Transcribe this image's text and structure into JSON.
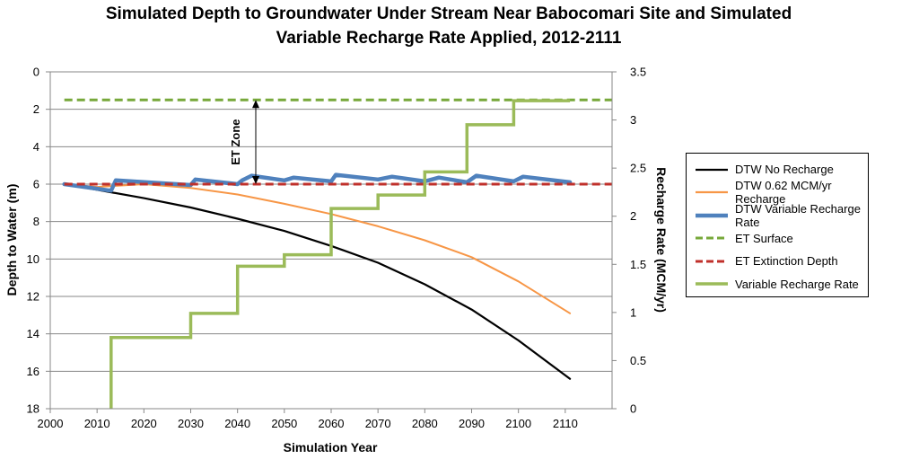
{
  "title_line1": "Simulated Depth to Groundwater Under Stream Near Babocomari Site and Simulated",
  "title_line2": "Variable Recharge Rate Applied, 2012-2111",
  "chart_data": {
    "type": "line",
    "title": "Simulated Depth to Groundwater Under Stream Near Babocomari Site and Simulated Variable Recharge Rate Applied, 2012-2111",
    "xlabel": "Simulation Year",
    "ylabel": "Depth to Water (m)",
    "y2label": "Recharge Rate (MCM/yr)",
    "xlim": [
      2000,
      2120
    ],
    "xticks": [
      2000,
      2010,
      2020,
      2030,
      2040,
      2050,
      2060,
      2070,
      2080,
      2090,
      2100,
      2110
    ],
    "ylim": [
      0,
      18
    ],
    "yticks": [
      0,
      2,
      4,
      6,
      8,
      10,
      12,
      14,
      16,
      18
    ],
    "y_inverted": true,
    "y2lim": [
      0,
      3.5
    ],
    "y2ticks": [
      "0",
      "0.5",
      "1",
      "1.5",
      "2",
      "2.5",
      "3",
      "3.5"
    ],
    "grid": true,
    "legend_position": "right",
    "annotation": "ET Zone",
    "series": [
      {
        "name": "DTW No Recharge",
        "axis": "left",
        "color": "#000000",
        "style": "solid",
        "x": [
          2003,
          2010,
          2020,
          2030,
          2040,
          2050,
          2060,
          2070,
          2080,
          2090,
          2100,
          2111
        ],
        "y": [
          6.0,
          6.3,
          6.75,
          7.25,
          7.85,
          8.5,
          9.3,
          10.2,
          11.35,
          12.7,
          14.35,
          16.4
        ]
      },
      {
        "name": "DTW 0.62 MCM/yr Recharge",
        "axis": "left",
        "color": "#f79646",
        "style": "solid",
        "x": [
          2003,
          2010,
          2020,
          2030,
          2040,
          2050,
          2060,
          2070,
          2080,
          2090,
          2100,
          2111
        ],
        "y": [
          6.0,
          6.15,
          6.0,
          6.2,
          6.55,
          7.05,
          7.6,
          8.25,
          9.0,
          9.9,
          11.2,
          12.9
        ]
      },
      {
        "name": "DTW Variable Recharge Rate",
        "axis": "left",
        "color": "#4f81bd",
        "style": "thick",
        "x": [
          2003,
          2013,
          2014,
          2030,
          2031,
          2040,
          2041,
          2043,
          2050,
          2052,
          2060,
          2061,
          2070,
          2073,
          2080,
          2083,
          2089,
          2091,
          2099,
          2101,
          2111
        ],
        "y": [
          6.0,
          6.35,
          5.8,
          6.05,
          5.75,
          6.0,
          5.8,
          5.55,
          5.8,
          5.65,
          5.85,
          5.5,
          5.75,
          5.6,
          5.85,
          5.65,
          5.9,
          5.55,
          5.85,
          5.6,
          5.9
        ]
      },
      {
        "name": "ET Surface",
        "axis": "left",
        "color": "#77a83a",
        "style": "dashed",
        "x": [
          2003,
          2120
        ],
        "y": [
          1.5,
          1.5
        ]
      },
      {
        "name": "ET Extinction Depth",
        "axis": "left",
        "color": "#c0302b",
        "style": "dashed",
        "x": [
          2003,
          2120
        ],
        "y": [
          6.0,
          6.0
        ]
      },
      {
        "name": "Variable Recharge Rate",
        "axis": "right",
        "color": "#9bbb59",
        "style": "step",
        "x": [
          2013,
          2013,
          2030,
          2030,
          2040,
          2040,
          2050,
          2050,
          2060,
          2060,
          2070,
          2070,
          2080,
          2080,
          2089,
          2089,
          2099,
          2099,
          2111
        ],
        "y": [
          0,
          0.74,
          0.74,
          0.99,
          0.99,
          1.48,
          1.48,
          1.6,
          1.6,
          2.08,
          2.08,
          2.22,
          2.22,
          2.46,
          2.46,
          2.95,
          2.95,
          3.2,
          3.2
        ]
      }
    ]
  }
}
